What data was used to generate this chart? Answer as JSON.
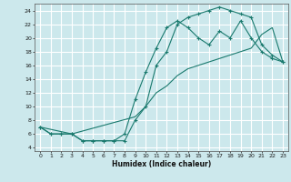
{
  "xlabel": "Humidex (Indice chaleur)",
  "bg_color": "#cce8ec",
  "grid_color": "#ffffff",
  "line_color": "#1a7a6e",
  "xlim": [
    -0.5,
    23.5
  ],
  "ylim": [
    3.5,
    25
  ],
  "xticks": [
    0,
    1,
    2,
    3,
    4,
    5,
    6,
    7,
    8,
    9,
    10,
    11,
    12,
    13,
    14,
    15,
    16,
    17,
    18,
    19,
    20,
    21,
    22,
    23
  ],
  "yticks": [
    4,
    6,
    8,
    10,
    12,
    14,
    16,
    18,
    20,
    22,
    24
  ],
  "curve1_x": [
    0,
    1,
    2,
    3,
    4,
    5,
    6,
    7,
    8,
    9,
    10,
    11,
    12,
    13,
    14,
    15,
    16,
    17,
    18,
    19,
    20,
    21,
    22,
    23
  ],
  "curve1_y": [
    7,
    6,
    6,
    6,
    5,
    5,
    5,
    5,
    5,
    8,
    10,
    16,
    18,
    22,
    23,
    23.5,
    24,
    24.5,
    24,
    23.5,
    23,
    19,
    17.5,
    16.5
  ],
  "curve2_x": [
    0,
    1,
    2,
    3,
    4,
    5,
    6,
    7,
    8,
    9,
    10,
    11,
    12,
    13,
    14,
    15,
    16,
    17,
    18,
    19,
    20,
    21,
    22,
    23
  ],
  "curve2_y": [
    7,
    6,
    6,
    6,
    5,
    5,
    5,
    5,
    6,
    11,
    15,
    18.5,
    21.5,
    22.5,
    21.5,
    20,
    19,
    21,
    20,
    22.5,
    20,
    18,
    17,
    16.5
  ],
  "curve3_x": [
    0,
    3,
    9,
    10,
    11,
    12,
    13,
    14,
    15,
    16,
    17,
    18,
    19,
    20,
    21,
    22,
    23
  ],
  "curve3_y": [
    7,
    6,
    8.5,
    10,
    12,
    13,
    14.5,
    15.5,
    16,
    16.5,
    17,
    17.5,
    18,
    18.5,
    20.5,
    21.5,
    16.5
  ]
}
